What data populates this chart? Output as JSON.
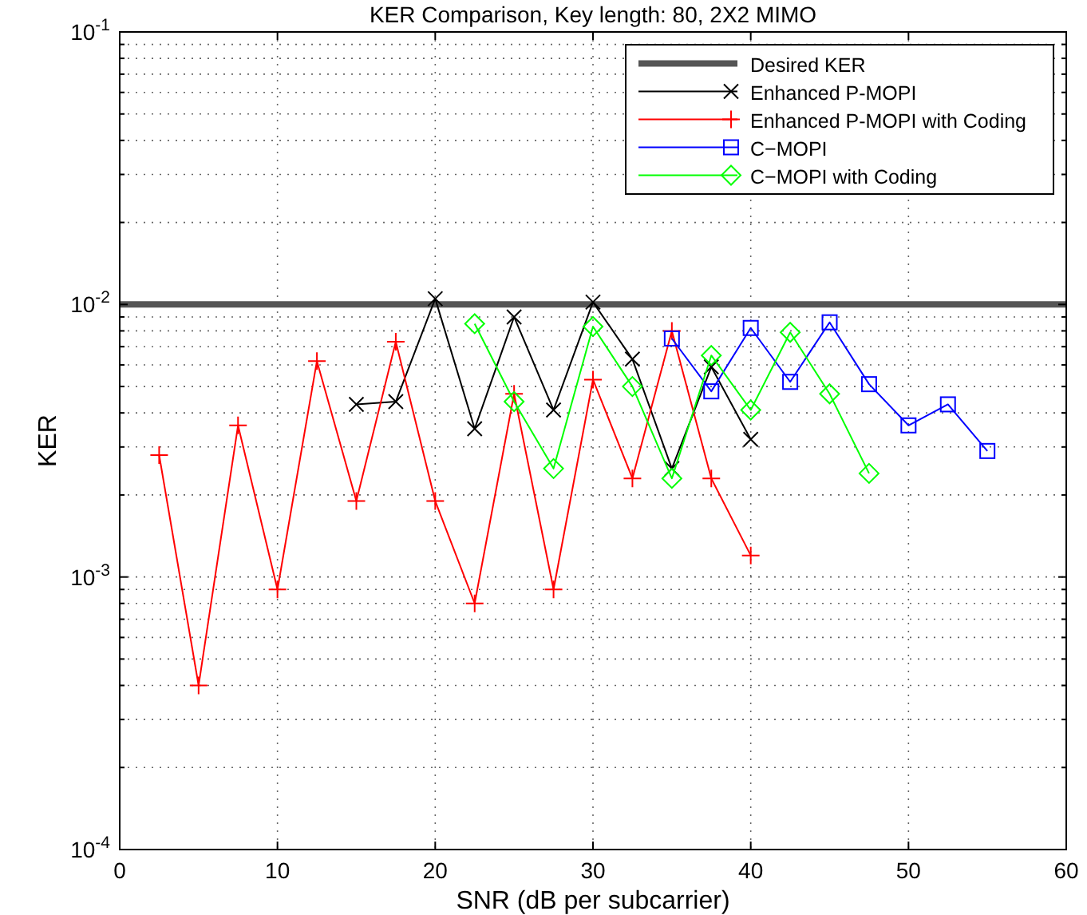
{
  "chart_data": {
    "type": "line",
    "title": "KER Comparison, Key length: 80, 2X2 MIMO",
    "xlabel": "SNR (dB per subcarrier)",
    "ylabel": "KER",
    "log": "y",
    "grid": true,
    "legend": "top right",
    "xlim": [
      0,
      60
    ],
    "xticks": [
      0,
      10,
      20,
      30,
      40,
      50,
      60
    ],
    "ylim": [
      0.0001,
      0.1
    ],
    "yticks": [
      {
        "value": 0.0001,
        "label": "10$^{-4}$"
      },
      {
        "value": 0.001,
        "label": "10$^{-3}$"
      },
      {
        "value": 0.01,
        "label": "10$^{-2}$"
      },
      {
        "value": 0.1,
        "label": "10$^{-1}$"
      }
    ],
    "ref_lines": [
      {
        "axis": "y",
        "value": 0.01,
        "label": "Desired KER",
        "color": "#555555"
      }
    ],
    "series": [
      {
        "name": "Enhanced P-MOPI",
        "color": "#000000",
        "marker": "x",
        "x": [
          15,
          17.5,
          20,
          22.5,
          25,
          27.5,
          30,
          32.5,
          35,
          37.5,
          40
        ],
        "values": [
          0.0043,
          0.0044,
          0.0105,
          0.0035,
          0.009,
          0.0041,
          0.0102,
          0.0063,
          0.0025,
          0.0059,
          0.0032
        ]
      },
      {
        "name": "Enhanced P-MOPI with Coding",
        "color": "#ff0000",
        "marker": "cross",
        "x": [
          2.5,
          5,
          7.5,
          10,
          12.5,
          15,
          17.5,
          20,
          22.5,
          25,
          27.5,
          30,
          32.5,
          35,
          37.5,
          40
        ],
        "values": [
          0.0028,
          0.0004,
          0.0036,
          0.0009,
          0.0062,
          0.0019,
          0.0073,
          0.0019,
          0.0008,
          0.0047,
          0.0009,
          0.0053,
          0.0023,
          0.008,
          0.0023,
          0.0012
        ]
      },
      {
        "name": "C−MOPI",
        "color": "#0000ff",
        "marker": "square",
        "x": [
          35,
          37.5,
          40,
          42.5,
          45,
          47.5,
          50,
          52.5,
          55
        ],
        "values": [
          0.0075,
          0.0048,
          0.0082,
          0.0052,
          0.0086,
          0.0051,
          0.0036,
          0.0043,
          0.0029
        ]
      },
      {
        "name": "C−MOPI with Coding",
        "color": "#00ff00",
        "marker": "diamond",
        "x": [
          22.5,
          25,
          27.5,
          30,
          32.5,
          35,
          37.5,
          40,
          42.5,
          45,
          47.5
        ],
        "values": [
          0.0085,
          0.0044,
          0.0025,
          0.0083,
          0.005,
          0.0023,
          0.0065,
          0.0041,
          0.0079,
          0.0047,
          0.0024
        ]
      }
    ]
  }
}
